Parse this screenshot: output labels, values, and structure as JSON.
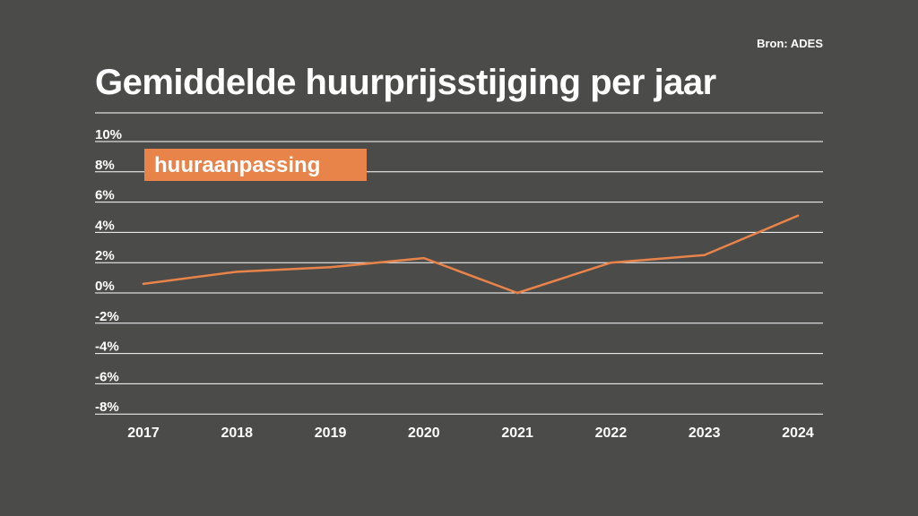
{
  "source": "Bron: ADES",
  "title": "Gemiddelde huurprijsstijging per jaar",
  "colors": {
    "background": "#4b4b4a",
    "line": "#e8834a",
    "grid": "#ffffff",
    "text": "#ffffff"
  },
  "chart_data": {
    "type": "line",
    "title": "Gemiddelde huurprijsstijging per jaar",
    "xlabel": "",
    "ylabel": "",
    "categories": [
      "2017",
      "2018",
      "2019",
      "2020",
      "2021",
      "2022",
      "2023",
      "2024"
    ],
    "series": [
      {
        "name": "huuraanpassing",
        "values": [
          0.6,
          1.4,
          1.7,
          2.3,
          0.0,
          2.0,
          2.5,
          5.1
        ]
      }
    ],
    "ylim": [
      -8,
      10
    ],
    "yticks": [
      10,
      8,
      6,
      4,
      2,
      0,
      -2,
      -4,
      -6,
      -8
    ],
    "ytick_labels": [
      "10%",
      "8%",
      "6%",
      "4%",
      "2%",
      "0%",
      "-2%",
      "-4%",
      "-6%",
      "-8%"
    ],
    "grid": true,
    "legend_position": "top-left"
  }
}
